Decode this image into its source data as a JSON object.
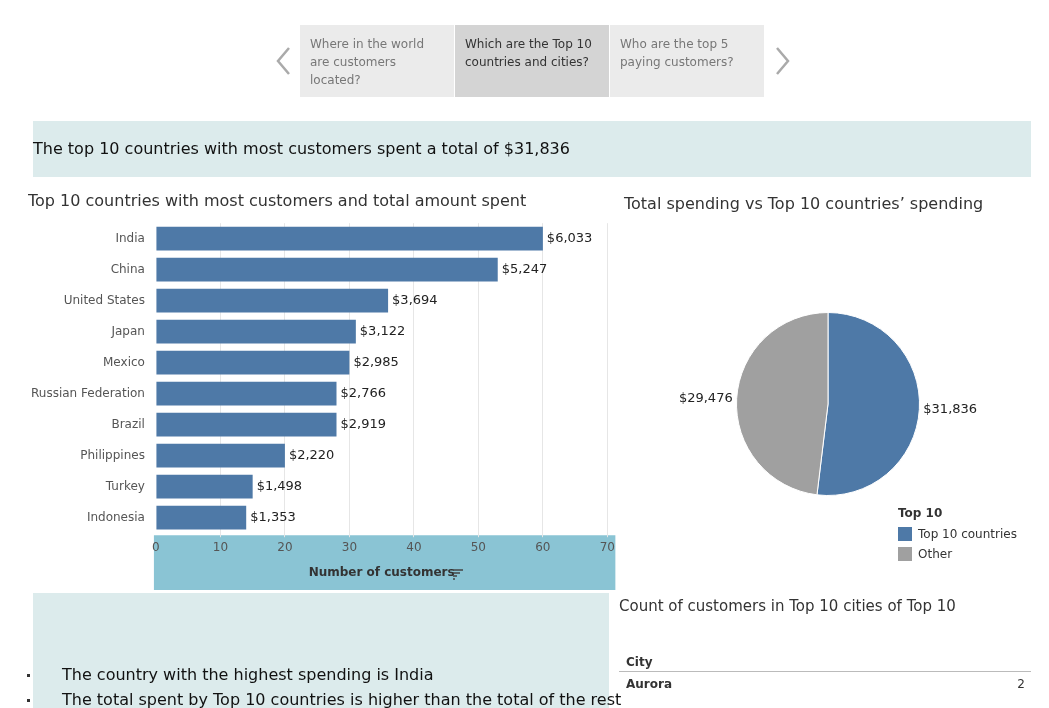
{
  "chart_data": [
    {
      "type": "other",
      "title": "The top 10 countries with most customers spent a total of $31,836",
      "annotations": [
        "Where in the world are customers located?",
        "Which are the Top 10 countries and cities?",
        "Who are the top 5 paying customers?"
      ]
    },
    {
      "type": "bar",
      "orientation": "horizontal",
      "title": "Top 10 countries with most customers and total amount spent",
      "xlabel": "Number of customers",
      "categories": [
        "India",
        "China",
        "United States",
        "Japan",
        "Mexico",
        "Russian Federation",
        "Brazil",
        "Philippines",
        "Turkey",
        "Indonesia"
      ],
      "values": [
        60,
        53,
        36,
        31,
        30,
        28,
        28,
        20,
        15,
        14
      ],
      "annotations": [
        {
          "text": "$6,033",
          "x": 60,
          "y": "India"
        },
        {
          "text": "$5,247",
          "x": 53,
          "y": "China"
        },
        {
          "text": "$3,694",
          "x": 36,
          "y": "United States"
        },
        {
          "text": "$3,122",
          "x": 31,
          "y": "Japan"
        },
        {
          "text": "$2,985",
          "x": 30,
          "y": "Mexico"
        },
        {
          "text": "$2,766",
          "x": 28,
          "y": "Russian Federation"
        },
        {
          "text": "$2,919",
          "x": 28,
          "y": "Brazil"
        },
        {
          "text": "$2,220",
          "x": 20,
          "y": "Philippines"
        },
        {
          "text": "$1,498",
          "x": 15,
          "y": "Turkey"
        },
        {
          "text": "$1,353",
          "x": 14,
          "y": "Indonesia"
        }
      ],
      "color": "#4e79a7",
      "xlim": [
        0,
        70
      ],
      "xticks": [
        0,
        10,
        20,
        30,
        40,
        50,
        60,
        70
      ],
      "grid": "x",
      "legend": false
    },
    {
      "type": "pie",
      "title": "Total spending vs Top 10 countries’ spending",
      "legend_title": "Top 10",
      "legend": "bottom right",
      "categories": [
        "Top 10 countries",
        "Other"
      ],
      "values": [
        31836,
        29476
      ],
      "colors": [
        "#4e79a7",
        "#a0a0a0"
      ],
      "value_labels": [
        "$31,836",
        "$29,476"
      ]
    },
    {
      "type": "other",
      "annotations": [
        "The country with the highest spending is India",
        "The total spent by Top 10 countries is higher than the total of the rest"
      ]
    },
    {
      "type": "other",
      "title": "Count of customers in Top 10 cities of Top 10",
      "annotations": [
        "City",
        "Aurora",
        "2"
      ]
    }
  ]
}
